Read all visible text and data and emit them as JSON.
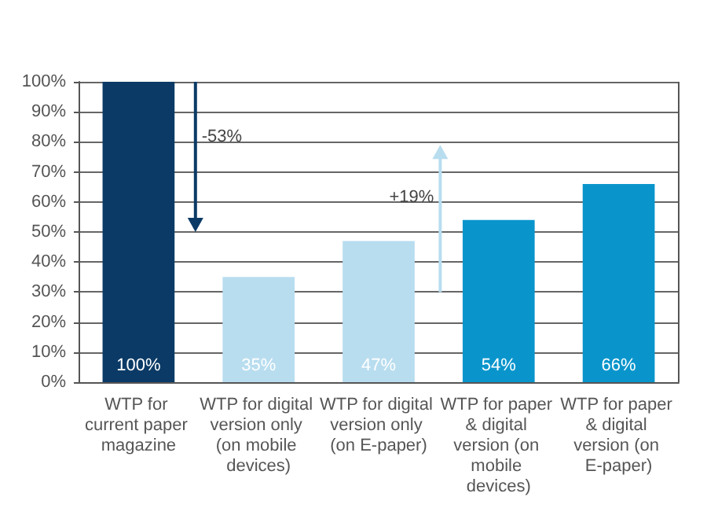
{
  "chart_data": {
    "type": "bar",
    "categories": [
      "WTP for current paper magazine",
      "WTP for digital version only (on mobile devices)",
      "WTP for digital version only (on E-paper)",
      "WTP for paper & digital version (on mobile devices)",
      "WTP for paper & digital version (on E-paper)"
    ],
    "values": [
      100,
      35,
      47,
      54,
      66
    ],
    "colors": [
      "#0b3a66",
      "#b8ddef",
      "#b8ddef",
      "#0995cc",
      "#0995cc"
    ],
    "value_labels": [
      "100%",
      "35%",
      "47%",
      "54%",
      "66%"
    ],
    "ylim": [
      0,
      100
    ],
    "yticks": [
      {
        "value": 0,
        "label": "0%"
      },
      {
        "value": 10,
        "label": "10%"
      },
      {
        "value": 20,
        "label": "20%"
      },
      {
        "value": 30,
        "label": "30%"
      },
      {
        "value": 40,
        "label": "40%"
      },
      {
        "value": 50,
        "label": "50%"
      },
      {
        "value": 60,
        "label": "60%"
      },
      {
        "value": 70,
        "label": "70%"
      },
      {
        "value": 80,
        "label": "80%"
      },
      {
        "value": 90,
        "label": "90%"
      },
      {
        "value": 100,
        "label": "100%"
      }
    ],
    "grid": "y",
    "annotations": [
      "-53%",
      "+19%"
    ]
  }
}
